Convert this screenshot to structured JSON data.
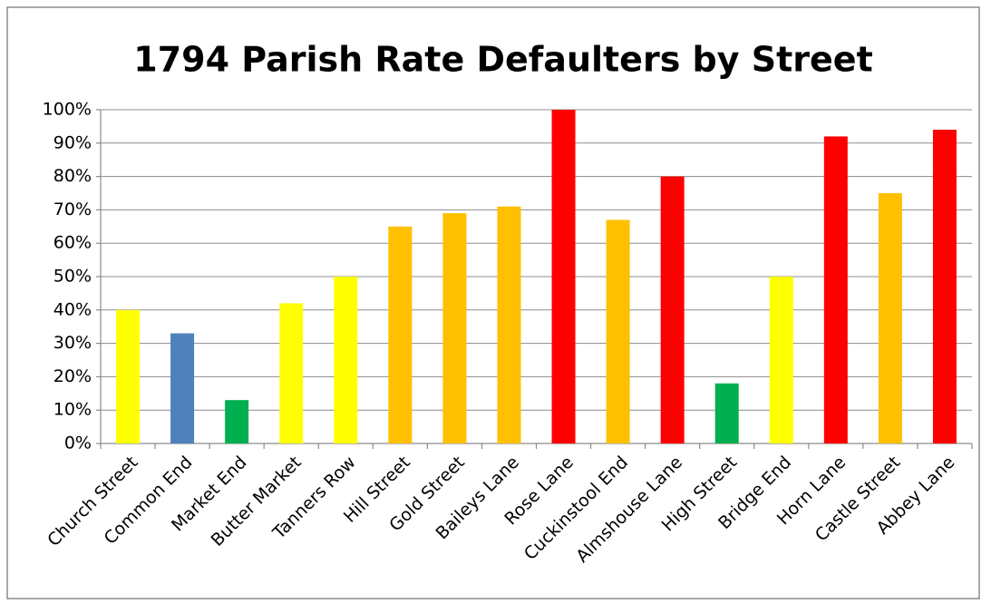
{
  "chart_data": {
    "type": "bar",
    "title": "1794 Parish Rate Defaulters  by Street",
    "categories": [
      "Church Street",
      "Common End",
      "Market End",
      "Butter Market",
      "Tanners Row",
      "Hill Street",
      "Gold Street",
      "Baileys Lane",
      "Rose Lane",
      "Cuckinstool End",
      "Almshouse Lane",
      "High Street",
      "Bridge End",
      "Horn Lane",
      "Castle Street",
      "Abbey Lane"
    ],
    "values": [
      40,
      33,
      13,
      42,
      50,
      65,
      69,
      71,
      100,
      67,
      80,
      18,
      50,
      92,
      75,
      94
    ],
    "colors": [
      "#ffff00",
      "#4f81bd",
      "#00b050",
      "#ffff00",
      "#ffff00",
      "#ffc000",
      "#ffc000",
      "#ffc000",
      "#ff0000",
      "#ffc000",
      "#ff0000",
      "#00b050",
      "#ffff00",
      "#ff0000",
      "#ffc000",
      "#ff0000"
    ],
    "ylim": [
      0,
      100
    ],
    "yticks": [
      {
        "value": 0,
        "label": "0%"
      },
      {
        "value": 10,
        "label": "10%"
      },
      {
        "value": 20,
        "label": "20%"
      },
      {
        "value": 30,
        "label": "30%"
      },
      {
        "value": 40,
        "label": "40%"
      },
      {
        "value": 50,
        "label": "50%"
      },
      {
        "value": 60,
        "label": "60%"
      },
      {
        "value": 70,
        "label": "70%"
      },
      {
        "value": 80,
        "label": "80%"
      },
      {
        "value": 90,
        "label": "90%"
      },
      {
        "value": 100,
        "label": "100%"
      }
    ],
    "grid": true
  }
}
